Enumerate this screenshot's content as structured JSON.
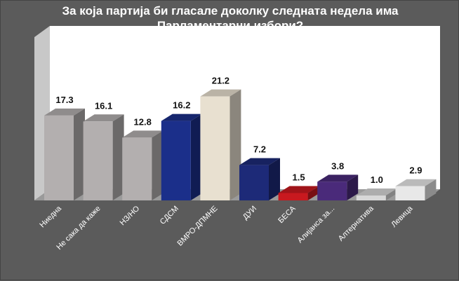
{
  "chart_data": {
    "type": "bar",
    "title": "За која партија би гласале доколку следната недела има\nПарламентарни избори?",
    "categories": [
      "Ниедна",
      "Не сака да каже",
      "НЗ/НО",
      "СДСМ",
      "ВМРО-ДПМНЕ",
      "ДУИ",
      "БЕСА",
      "Алијанса за...",
      "Алтернатива",
      "Левица"
    ],
    "values": [
      17.3,
      16.1,
      12.8,
      16.2,
      21.2,
      7.2,
      1.5,
      3.8,
      1.0,
      2.9
    ],
    "value_labels": [
      "17.3",
      "16.1",
      "12.8",
      "16.2",
      "21.2",
      "7.2",
      "1.5",
      "3.8",
      "1.0",
      "2.9"
    ],
    "bar_colors": [
      "#b3afaf",
      "#b3afaf",
      "#b3afaf",
      "#1b2f8a",
      "#e8e0d0",
      "#1d2a78",
      "#c8191f",
      "#4a2a7a",
      "#d8d8d8",
      "#e8e8e8"
    ],
    "ylim": [
      0,
      25
    ],
    "grid": false,
    "legend": "none",
    "xlabel": "",
    "ylabel": ""
  },
  "colors": {
    "background": "#5b5b5b",
    "plot_back": "#ffffff",
    "plot_side": "#c8c8c8",
    "floor": "#9a9a9a"
  }
}
